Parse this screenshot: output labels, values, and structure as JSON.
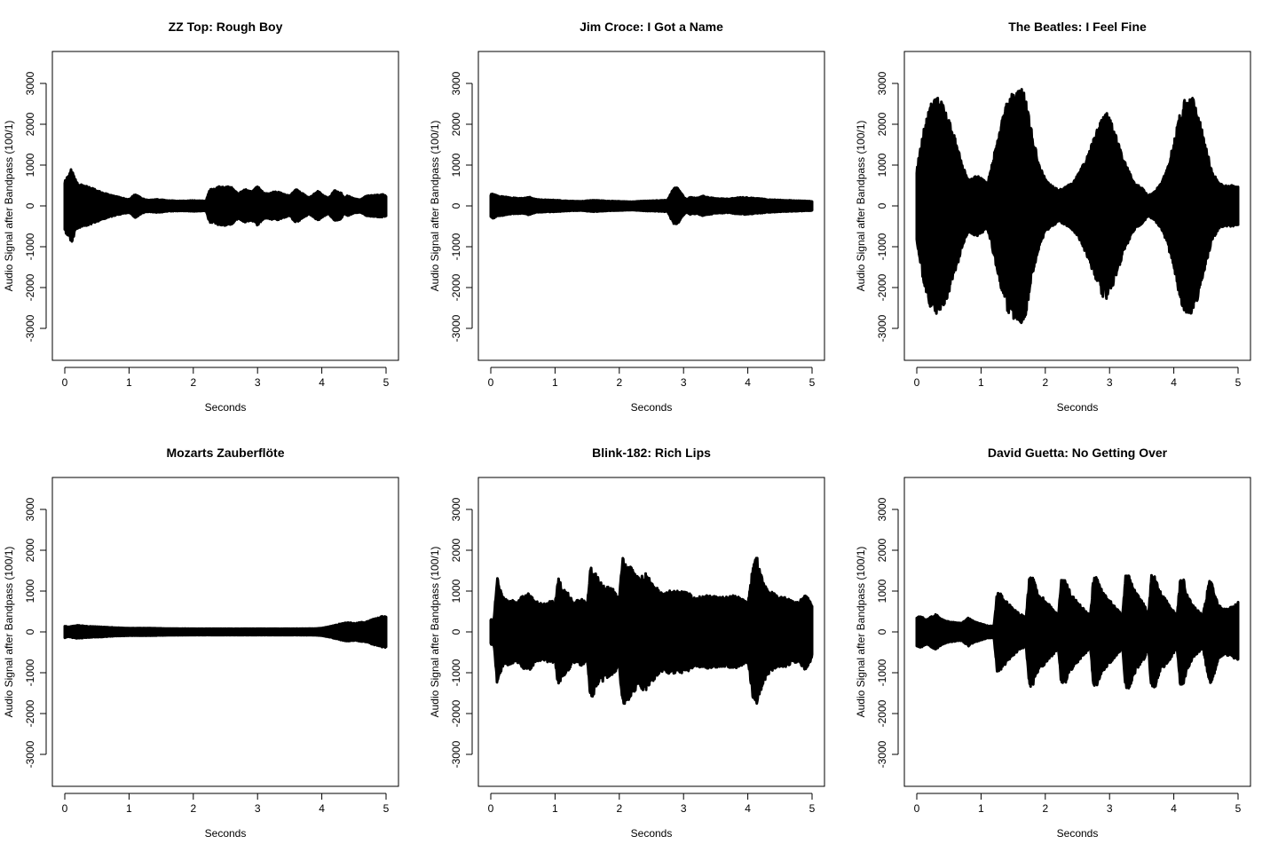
{
  "chart_data": [
    {
      "type": "area",
      "title": "ZZ Top: Rough Boy",
      "xlabel": "Seconds",
      "ylabel": "Audio Signal after Bandpass (100/1)",
      "xlim": [
        0,
        5
      ],
      "ylim": [
        -3700,
        3700
      ],
      "xticks": [
        0,
        1,
        2,
        3,
        4,
        5
      ],
      "yticks": [
        -3000,
        -2000,
        -1000,
        0,
        1000,
        2000,
        3000
      ],
      "grid": false,
      "series": [
        {
          "x": [
            0,
            0.05,
            0.1,
            0.15,
            0.2,
            0.3,
            0.4,
            0.55,
            0.7,
            0.85,
            1.0,
            1.1,
            1.2,
            1.3,
            1.45,
            1.6,
            1.8,
            2.0,
            2.2,
            2.25,
            2.3,
            2.4,
            2.5,
            2.6,
            2.7,
            2.8,
            2.9,
            3.0,
            3.1,
            3.3,
            3.5,
            3.6,
            3.8,
            3.95,
            4.0,
            4.1,
            4.2,
            4.3,
            4.35,
            4.4,
            4.5,
            4.6,
            4.7,
            4.8,
            4.9,
            4.95,
            5.0
          ],
          "amplitude": [
            580,
            700,
            870,
            650,
            500,
            450,
            400,
            300,
            220,
            160,
            110,
            240,
            130,
            90,
            110,
            80,
            70,
            80,
            70,
            350,
            360,
            420,
            430,
            400,
            250,
            360,
            300,
            430,
            260,
            300,
            200,
            360,
            150,
            320,
            230,
            140,
            330,
            270,
            140,
            200,
            130,
            100,
            200,
            210,
            220,
            230,
            200
          ]
        }
      ]
    },
    {
      "type": "area",
      "title": "Jim Croce: I Got a Name",
      "xlabel": "Seconds",
      "ylabel": "Audio Signal after Bandpass (100/1)",
      "xlim": [
        0,
        5
      ],
      "ylim": [
        -3700,
        3700
      ],
      "xticks": [
        0,
        1,
        2,
        3,
        4,
        5
      ],
      "yticks": [
        -3000,
        -2000,
        -1000,
        0,
        1000,
        2000,
        3000
      ],
      "grid": false,
      "series": [
        {
          "x": [
            0,
            0.05,
            0.1,
            0.2,
            0.3,
            0.4,
            0.5,
            0.6,
            0.7,
            0.8,
            1.0,
            1.2,
            1.4,
            1.6,
            1.8,
            2.0,
            2.2,
            2.4,
            2.6,
            2.75,
            2.8,
            2.85,
            2.9,
            2.95,
            3.0,
            3.05,
            3.1,
            3.2,
            3.3,
            3.5,
            3.7,
            3.9,
            4.1,
            4.3,
            4.5,
            4.7,
            4.9,
            5.0
          ],
          "amplitude": [
            230,
            260,
            200,
            180,
            150,
            140,
            130,
            170,
            110,
            100,
            90,
            70,
            60,
            90,
            70,
            60,
            50,
            70,
            80,
            90,
            250,
            400,
            420,
            300,
            180,
            100,
            160,
            140,
            190,
            130,
            120,
            160,
            140,
            110,
            90,
            80,
            70,
            60
          ]
        }
      ]
    },
    {
      "type": "area",
      "title": "The Beatles: I Feel Fine",
      "xlabel": "Seconds",
      "ylabel": "Audio Signal after Bandpass (100/1)",
      "xlim": [
        0,
        5
      ],
      "ylim": [
        -3700,
        3700
      ],
      "xticks": [
        0,
        1,
        2,
        3,
        4,
        5
      ],
      "yticks": [
        -3000,
        -2000,
        -1000,
        0,
        1000,
        2000,
        3000
      ],
      "grid": false,
      "series": [
        {
          "x": [
            0,
            0.05,
            0.1,
            0.2,
            0.3,
            0.4,
            0.5,
            0.6,
            0.7,
            0.8,
            0.95,
            1.1,
            1.2,
            1.3,
            1.4,
            1.5,
            1.6,
            1.65,
            1.7,
            1.8,
            1.9,
            2.0,
            2.1,
            2.2,
            2.3,
            2.4,
            2.5,
            2.6,
            2.7,
            2.8,
            2.9,
            2.95,
            3.0,
            3.1,
            3.2,
            3.3,
            3.4,
            3.5,
            3.6,
            3.7,
            3.8,
            3.9,
            4.0,
            4.1,
            4.2,
            4.3,
            4.4,
            4.5,
            4.6,
            4.7,
            4.8,
            4.9,
            5.0
          ],
          "amplitude": [
            900,
            1300,
            1800,
            2400,
            2650,
            2500,
            2100,
            1600,
            1000,
            600,
            700,
            500,
            1200,
            1900,
            2500,
            2750,
            2850,
            2800,
            2600,
            1700,
            1000,
            600,
            450,
            350,
            400,
            500,
            700,
            1000,
            1400,
            1800,
            2200,
            2250,
            2150,
            1700,
            1200,
            800,
            500,
            400,
            200,
            300,
            500,
            900,
            1500,
            2300,
            2700,
            2600,
            2100,
            1400,
            800,
            500,
            450,
            450,
            420
          ]
        }
      ]
    },
    {
      "type": "area",
      "title": "Mozarts Zauberflöte",
      "xlabel": "Seconds",
      "ylabel": "Audio Signal after Bandpass (100/1)",
      "xlim": [
        0,
        5
      ],
      "ylim": [
        -3700,
        3700
      ],
      "xticks": [
        0,
        1,
        2,
        3,
        4,
        5
      ],
      "yticks": [
        -3000,
        -2000,
        -1000,
        0,
        1000,
        2000,
        3000
      ],
      "grid": false,
      "series": [
        {
          "x": [
            0,
            0.05,
            0.2,
            0.4,
            0.6,
            0.8,
            1.0,
            1.3,
            1.6,
            2.0,
            2.4,
            2.8,
            3.2,
            3.6,
            3.9,
            4.0,
            4.1,
            4.2,
            4.3,
            4.4,
            4.5,
            4.6,
            4.7,
            4.8,
            4.9,
            4.95,
            5.0
          ],
          "amplitude": [
            90,
            70,
            110,
            80,
            70,
            50,
            40,
            40,
            30,
            25,
            25,
            25,
            25,
            25,
            30,
            40,
            70,
            110,
            150,
            180,
            160,
            180,
            200,
            260,
            300,
            340,
            330
          ]
        }
      ]
    },
    {
      "type": "area",
      "title": "Blink-182: Rich Lips",
      "xlabel": "Seconds",
      "ylabel": "Audio Signal after Bandpass (100/1)",
      "xlim": [
        0,
        5
      ],
      "ylim": [
        -3700,
        3700
      ],
      "xticks": [
        0,
        1,
        2,
        3,
        4,
        5
      ],
      "yticks": [
        -3000,
        -2000,
        -1000,
        0,
        1000,
        2000,
        3000
      ],
      "grid": false,
      "series": [
        {
          "x": [
            0,
            0.05,
            0.1,
            0.15,
            0.2,
            0.3,
            0.4,
            0.5,
            0.6,
            0.7,
            0.8,
            0.9,
            1.0,
            1.05,
            1.1,
            1.2,
            1.3,
            1.4,
            1.5,
            1.55,
            1.6,
            1.7,
            1.8,
            1.9,
            2.0,
            2.05,
            2.1,
            2.2,
            2.3,
            2.4,
            2.5,
            2.6,
            2.7,
            2.8,
            2.9,
            3.0,
            3.1,
            3.2,
            3.4,
            3.6,
            3.8,
            4.0,
            4.1,
            4.15,
            4.2,
            4.3,
            4.4,
            4.5,
            4.6,
            4.7,
            4.8,
            4.9,
            5.0
          ],
          "amplitude": [
            250,
            300,
            1300,
            1000,
            800,
            750,
            700,
            850,
            900,
            700,
            650,
            700,
            700,
            1300,
            1100,
            900,
            700,
            800,
            650,
            1600,
            1500,
            1200,
            1100,
            1000,
            800,
            1800,
            1700,
            1500,
            1300,
            1400,
            1200,
            1000,
            900,
            1000,
            950,
            950,
            900,
            800,
            850,
            800,
            850,
            700,
            1800,
            1750,
            1400,
            1000,
            900,
            800,
            800,
            700,
            700,
            900,
            600
          ]
        }
      ]
    },
    {
      "type": "area",
      "title": "David Guetta: No Getting Over",
      "xlabel": "Seconds",
      "ylabel": "Audio Signal after Bandpass (100/1)",
      "xlim": [
        0,
        5
      ],
      "ylim": [
        -3700,
        3700
      ],
      "xticks": [
        0,
        1,
        2,
        3,
        4,
        5
      ],
      "yticks": [
        -3000,
        -2000,
        -1000,
        0,
        1000,
        2000,
        3000
      ],
      "grid": false,
      "series": [
        {
          "x": [
            0,
            0.05,
            0.1,
            0.15,
            0.2,
            0.3,
            0.4,
            0.5,
            0.6,
            0.7,
            0.8,
            0.9,
            1.0,
            1.1,
            1.2,
            1.25,
            1.3,
            1.4,
            1.55,
            1.7,
            1.75,
            1.8,
            1.9,
            2.05,
            2.2,
            2.25,
            2.3,
            2.4,
            2.55,
            2.7,
            2.75,
            2.8,
            2.9,
            3.05,
            3.2,
            3.25,
            3.3,
            3.4,
            3.55,
            3.6,
            3.65,
            3.7,
            3.8,
            3.95,
            4.05,
            4.1,
            4.15,
            4.2,
            4.3,
            4.45,
            4.55,
            4.6,
            4.65,
            4.7,
            4.8,
            4.95,
            5.0
          ],
          "amplitude": [
            300,
            350,
            300,
            250,
            300,
            380,
            250,
            200,
            180,
            160,
            300,
            200,
            150,
            100,
            100,
            950,
            900,
            700,
            450,
            300,
            1300,
            1300,
            900,
            650,
            350,
            1250,
            1250,
            900,
            600,
            350,
            1300,
            1300,
            900,
            650,
            350,
            1350,
            1350,
            950,
            600,
            300,
            1350,
            1350,
            900,
            600,
            350,
            1250,
            1250,
            900,
            600,
            350,
            1200,
            1200,
            850,
            600,
            500,
            600,
            700
          ]
        }
      ]
    }
  ]
}
